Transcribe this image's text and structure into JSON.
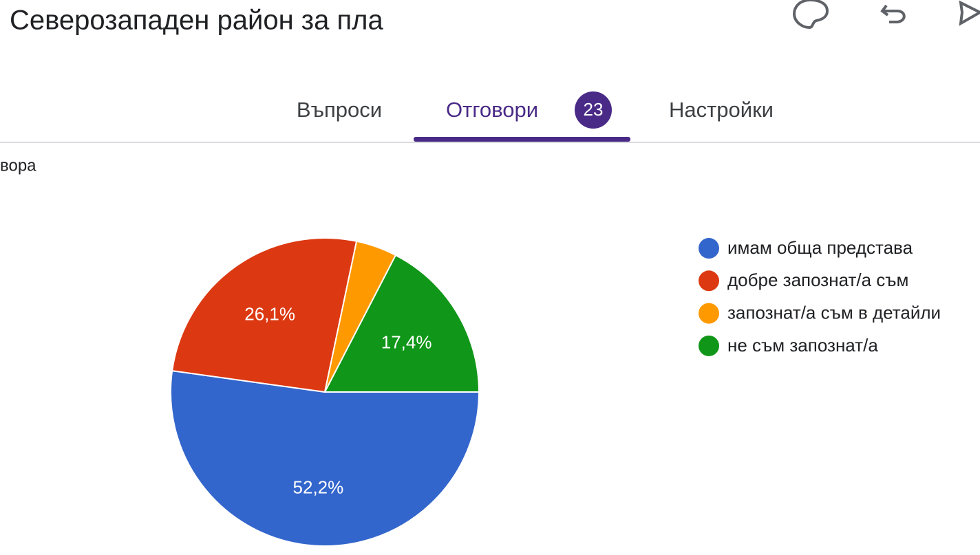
{
  "header": {
    "title": "Северозападен район за пла"
  },
  "tabs": [
    {
      "label": "Въпроси"
    },
    {
      "label": "Отговори",
      "badge": 23
    },
    {
      "label": "Настройки"
    }
  ],
  "question": {
    "text": "вора"
  },
  "chart_data": {
    "type": "pie",
    "categories": [
      "имам обща представа",
      "добре запознат/а съм",
      "запознат/а съм в детайли",
      "не съм запознат/а"
    ],
    "values": [
      52.2,
      26.1,
      4.3,
      17.4
    ],
    "value_labels": [
      "52,2%",
      "26,1%",
      null,
      "17,4%"
    ],
    "colors": [
      "#3366cc",
      "#dc3912",
      "#ff9900",
      "#109618"
    ],
    "legend": "right"
  }
}
